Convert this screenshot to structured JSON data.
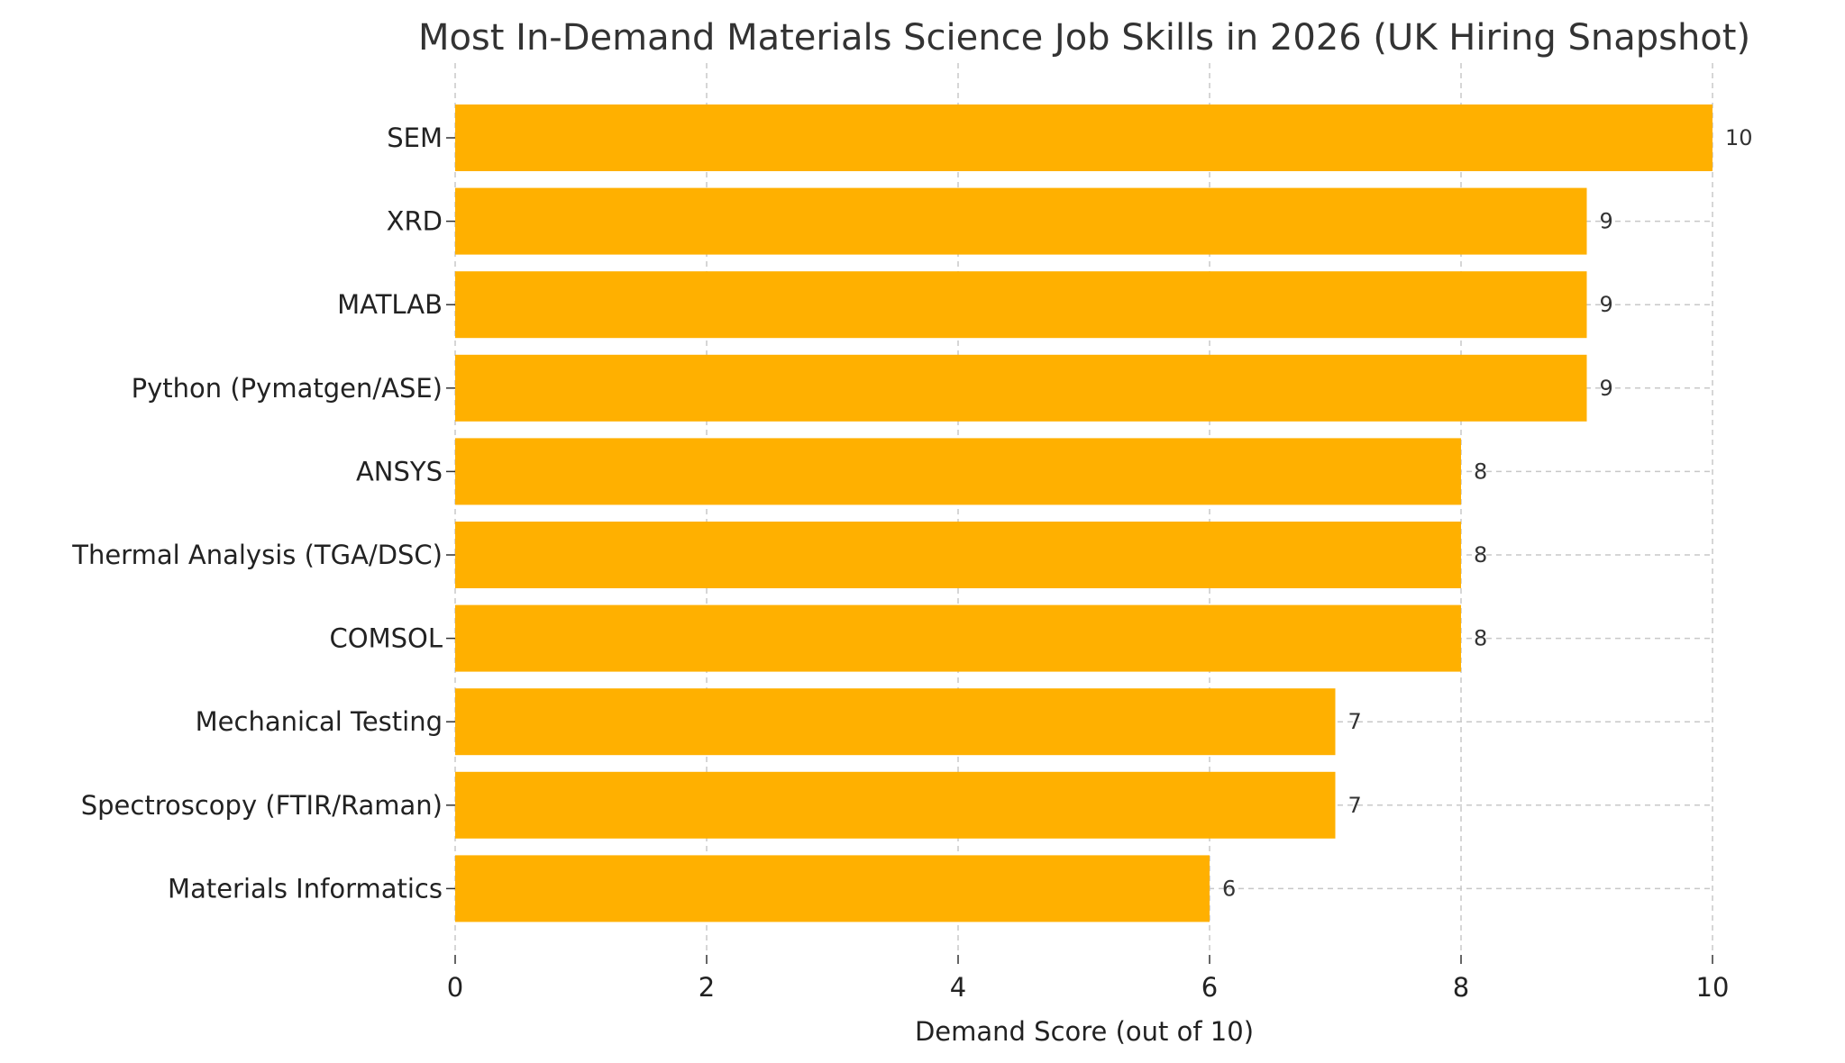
{
  "chart_data": {
    "type": "bar",
    "orientation": "horizontal",
    "title": "Most In-Demand Materials Science Job Skills in 2026 (UK Hiring Snapshot)",
    "xlabel": "Demand Score (out of 10)",
    "ylabel": "",
    "xlim": [
      0,
      10
    ],
    "x_ticks": [
      "0",
      "2",
      "4",
      "6",
      "8",
      "10"
    ],
    "grid": true,
    "bar_color": "#FFB000",
    "categories": [
      "SEM",
      "XRD",
      "MATLAB",
      "Python (Pymatgen/ASE)",
      "ANSYS",
      "Thermal Analysis (TGA/DSC)",
      "COMSOL",
      "Mechanical Testing",
      "Spectroscopy (FTIR/Raman)",
      "Materials Informatics"
    ],
    "values": [
      10,
      9,
      9,
      9,
      8,
      8,
      8,
      7,
      7,
      6
    ],
    "value_labels": [
      "10",
      "9",
      "9",
      "9",
      "8",
      "8",
      "8",
      "7",
      "7",
      "6"
    ]
  }
}
